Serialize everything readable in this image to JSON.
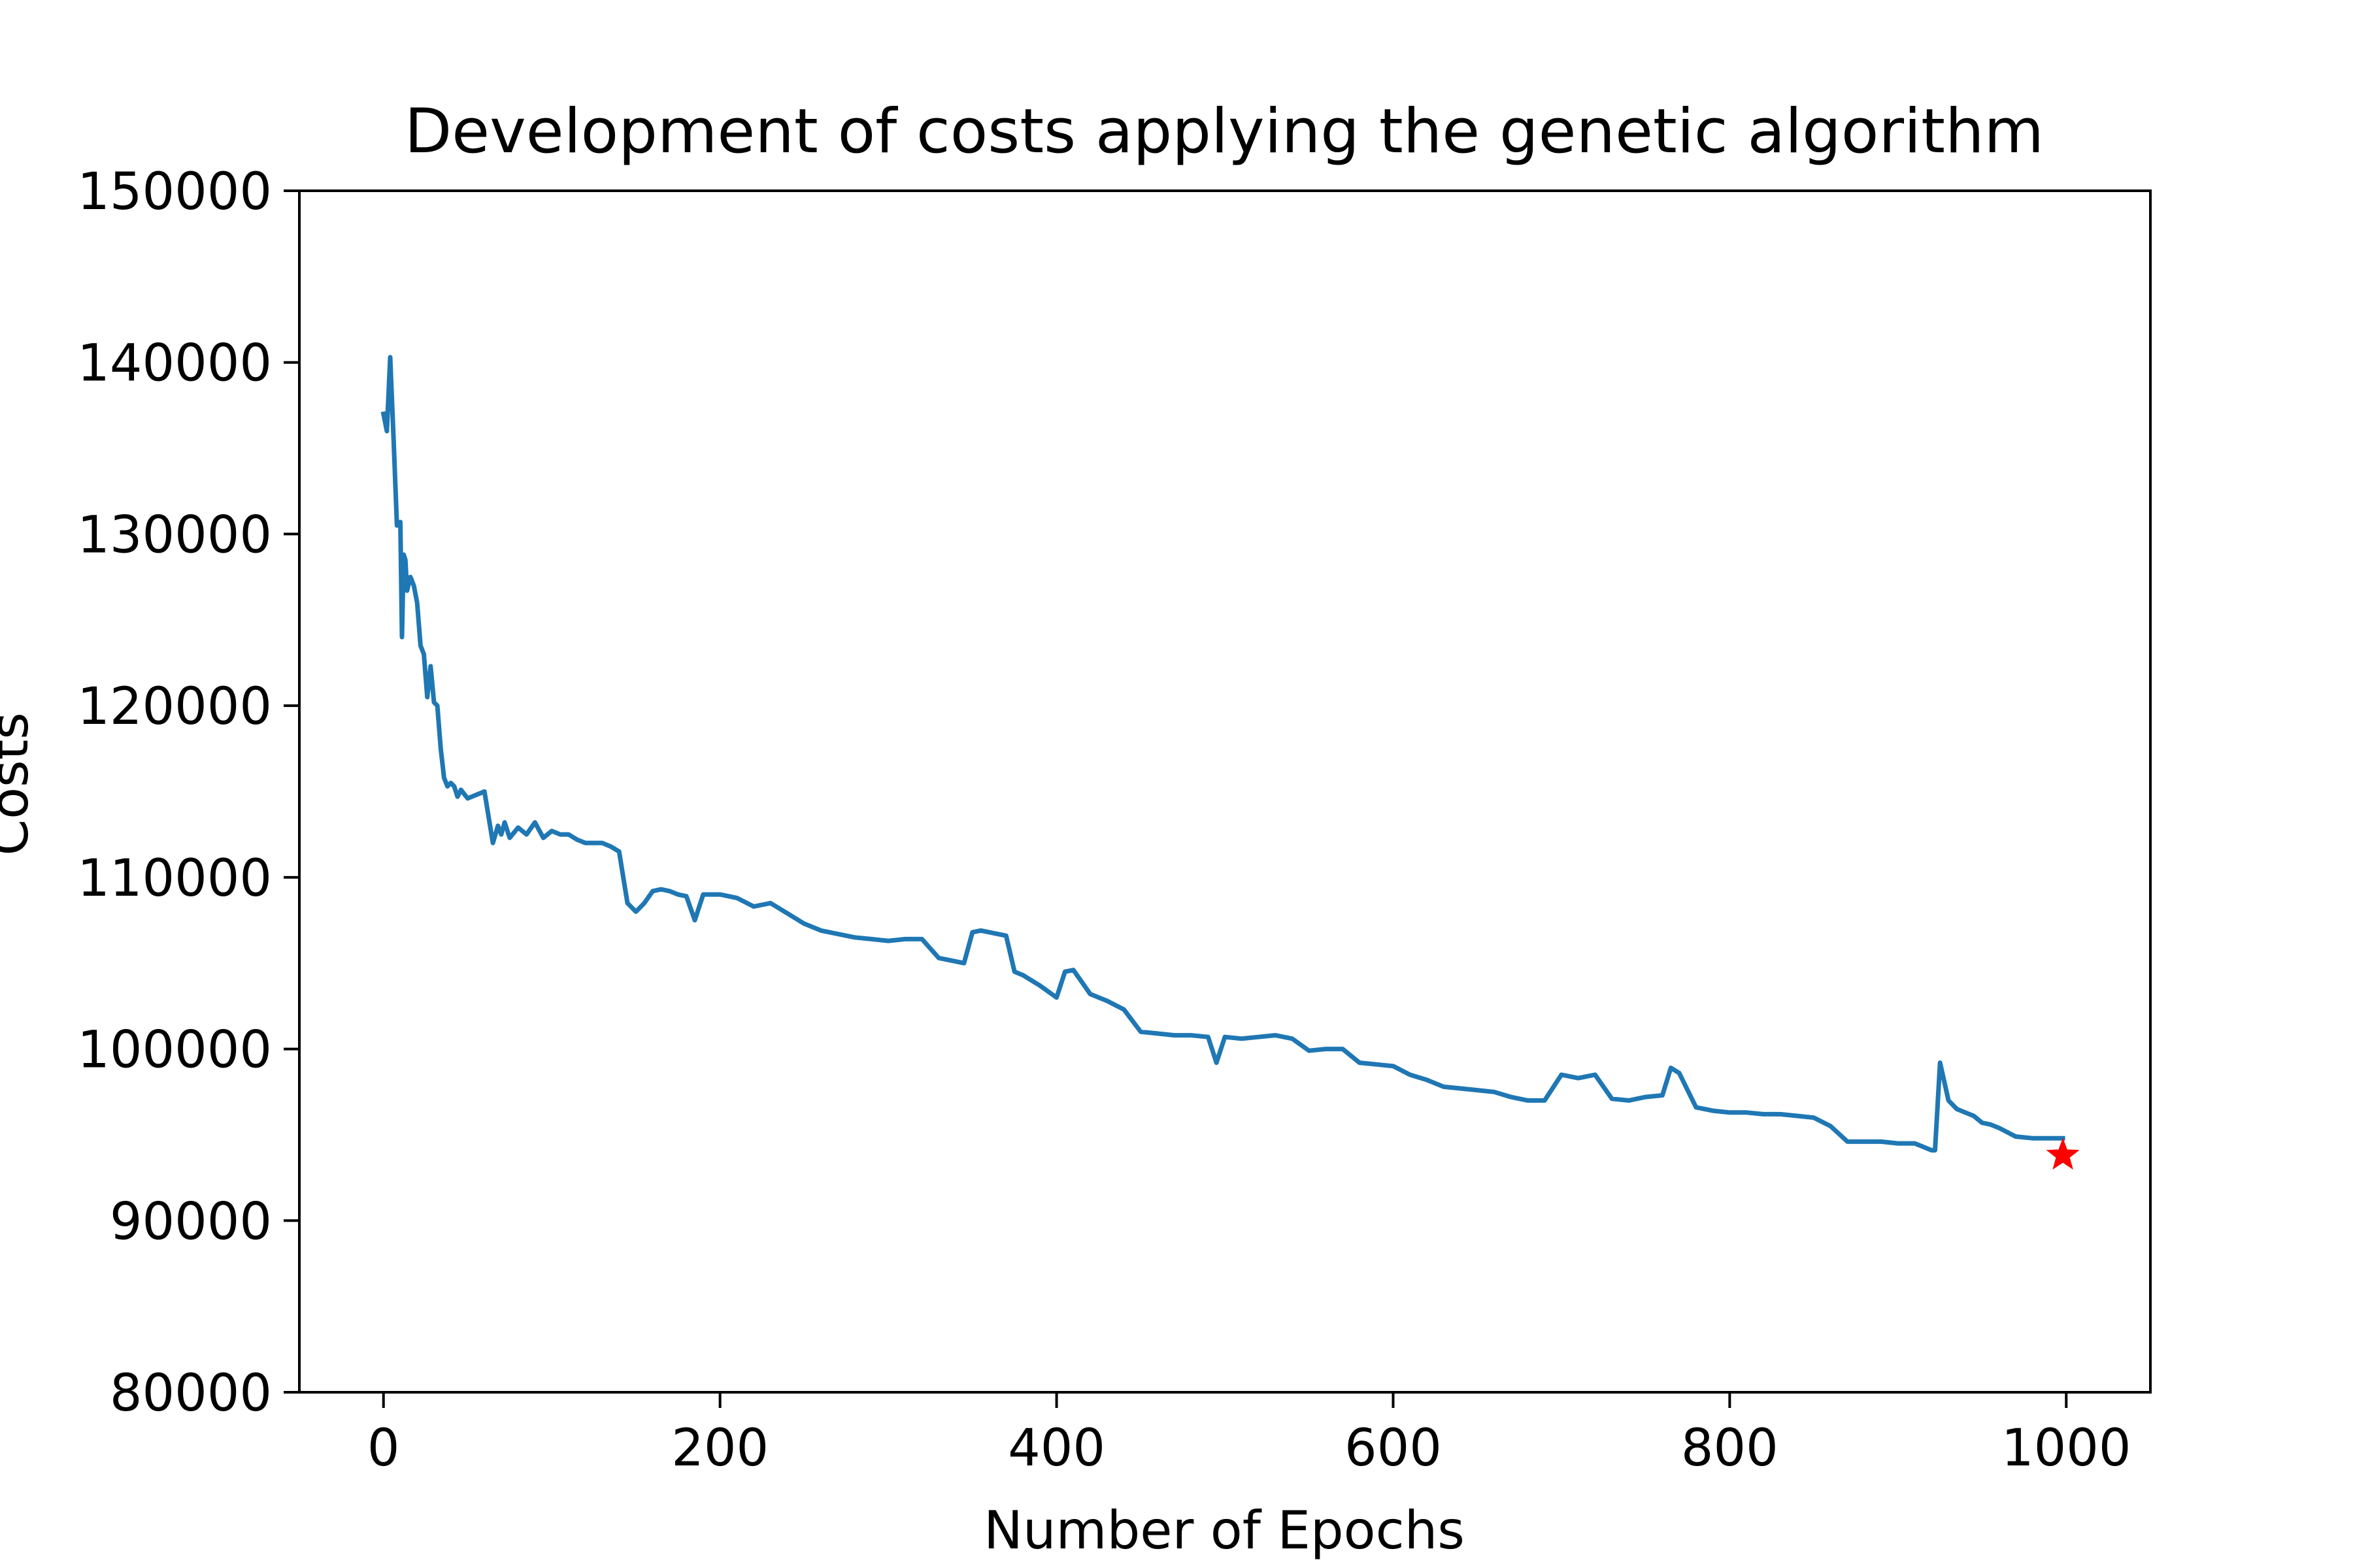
{
  "chart_data": {
    "type": "line",
    "title": "Development of costs applying the genetic algorithm",
    "xlabel": "Number of Epochs",
    "ylabel": "Costs",
    "xlim": [
      -50,
      1050
    ],
    "ylim": [
      80000,
      150000
    ],
    "xticks": [
      0,
      200,
      400,
      600,
      800,
      1000
    ],
    "yticks": [
      80000,
      90000,
      100000,
      110000,
      120000,
      130000,
      140000,
      150000
    ],
    "grid": false,
    "legend": "none",
    "series": [
      {
        "color": "#1f77b4",
        "x": [
          0,
          2,
          4,
          6,
          8,
          10,
          11,
          12,
          13,
          14,
          16,
          18,
          20,
          22,
          24,
          26,
          28,
          30,
          32,
          34,
          36,
          38,
          40,
          42,
          44,
          46,
          50,
          55,
          60,
          65,
          68,
          70,
          72,
          75,
          80,
          85,
          90,
          95,
          100,
          105,
          110,
          115,
          120,
          125,
          130,
          135,
          140,
          145,
          150,
          155,
          160,
          165,
          170,
          175,
          180,
          185,
          190,
          195,
          200,
          210,
          220,
          230,
          240,
          250,
          260,
          270,
          280,
          290,
          300,
          310,
          320,
          330,
          340,
          345,
          350,
          355,
          360,
          365,
          370,
          375,
          380,
          390,
          400,
          405,
          410,
          420,
          430,
          440,
          450,
          460,
          470,
          480,
          490,
          495,
          500,
          510,
          520,
          530,
          540,
          550,
          560,
          570,
          580,
          590,
          600,
          610,
          620,
          630,
          640,
          650,
          660,
          670,
          680,
          690,
          700,
          710,
          720,
          730,
          740,
          750,
          760,
          765,
          770,
          780,
          790,
          800,
          810,
          820,
          830,
          840,
          850,
          860,
          870,
          880,
          890,
          900,
          910,
          920,
          922,
          925,
          930,
          935,
          940,
          945,
          950,
          955,
          960,
          970,
          980,
          990,
          998
        ],
        "y": [
          137000,
          136000,
          140300,
          135500,
          130500,
          130700,
          124000,
          128800,
          128500,
          126700,
          127500,
          127000,
          126000,
          123500,
          123000,
          120500,
          122300,
          120200,
          120000,
          117500,
          115800,
          115300,
          115500,
          115300,
          114700,
          115100,
          114600,
          114800,
          115000,
          112000,
          113000,
          112500,
          113200,
          112300,
          112900,
          112500,
          113200,
          112300,
          112700,
          112500,
          112500,
          112200,
          112000,
          112000,
          112000,
          111800,
          111500,
          108500,
          108000,
          108500,
          109200,
          109300,
          109200,
          109000,
          108900,
          107500,
          109000,
          109000,
          109000,
          108800,
          108300,
          108500,
          107900,
          107300,
          106900,
          106700,
          106500,
          106400,
          106300,
          106400,
          106400,
          105300,
          105100,
          105000,
          106800,
          106900,
          106800,
          106700,
          106600,
          104500,
          104300,
          103700,
          103000,
          104500,
          104600,
          103200,
          102800,
          102300,
          101000,
          100900,
          100800,
          100800,
          100700,
          99200,
          100700,
          100600,
          100700,
          100800,
          100600,
          99900,
          100000,
          100000,
          99200,
          99100,
          99000,
          98500,
          98200,
          97800,
          97700,
          97600,
          97500,
          97200,
          97000,
          97000,
          98500,
          98300,
          98500,
          97100,
          97000,
          97200,
          97300,
          98900,
          98600,
          96600,
          96400,
          96300,
          96300,
          96200,
          96200,
          96100,
          96000,
          95500,
          94600,
          94600,
          94600,
          94500,
          94500,
          94100,
          94100,
          99200,
          97000,
          96500,
          96300,
          96100,
          95700,
          95600,
          95400,
          94900,
          94800,
          94800,
          94800
        ]
      }
    ],
    "marker": {
      "x": 998,
      "y": 93800,
      "shape": "star",
      "color": "#ff0000"
    }
  }
}
